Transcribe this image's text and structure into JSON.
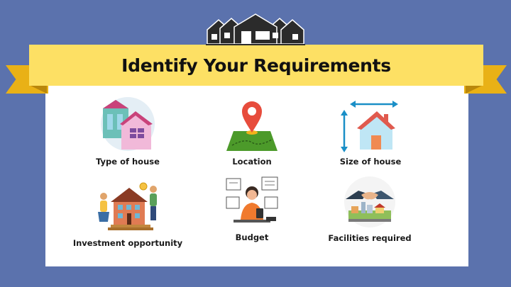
{
  "title": "Identify Your Requirements",
  "items": [
    {
      "label": "Type of house",
      "icon": "colorful-houses-icon"
    },
    {
      "label": "Location",
      "icon": "map-pin-icon"
    },
    {
      "label": "Size of house",
      "icon": "house-size-icon"
    },
    {
      "label": "Investment opportunity",
      "icon": "investors-house-icon"
    },
    {
      "label": "Budget",
      "icon": "budget-planning-icon"
    },
    {
      "label": "Facilities required",
      "icon": "handshake-town-icon"
    }
  ],
  "colors": {
    "background": "#5b72ad",
    "ribbon": "#fde064",
    "ribbon_tail": "#e9b116",
    "card": "#ffffff"
  }
}
